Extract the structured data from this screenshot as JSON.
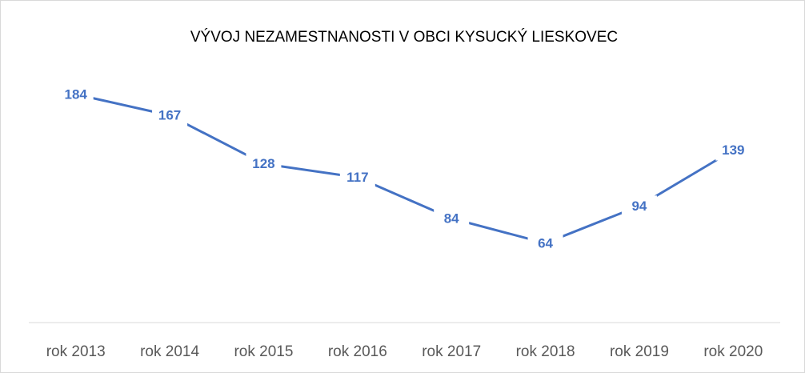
{
  "chart_data": {
    "type": "line",
    "title": "VÝVOJ NEZAMESTNANOSTI V OBCI KYSUCKÝ LIESKOVEC",
    "categories": [
      "rok 2013",
      "rok 2014",
      "rok 2015",
      "rok 2016",
      "rok 2017",
      "rok 2018",
      "rok 2019",
      "rok 2020"
    ],
    "values": [
      184,
      167,
      128,
      117,
      84,
      64,
      94,
      139
    ],
    "color": "#4472c4",
    "ylim": [
      0,
      200
    ]
  }
}
